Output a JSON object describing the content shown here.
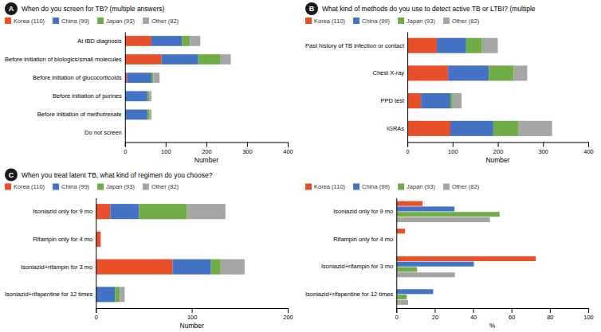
{
  "chart_data": [
    {
      "type": "bar",
      "orientation": "horizontal",
      "stacked": true,
      "grid": false,
      "legend": "top",
      "title": "When do you screen for TB? (multiple answers)",
      "annotations": [
        "A"
      ],
      "categories": [
        "Do not screen",
        "Before initiation of methotrexate",
        "Before initiation of purines",
        "Before initiation of glucocorticoids",
        "Before initiation of biologics/small molecules",
        "At IBD diagnosis"
      ],
      "series": [
        {
          "name": "Korea (110)",
          "color": "#E8502A",
          "values": [
            2,
            0,
            0,
            5,
            90,
            65
          ]
        },
        {
          "name": "China (99)",
          "color": "#4472C4",
          "values": [
            0,
            55,
            55,
            60,
            90,
            75
          ]
        },
        {
          "name": "Japan (93)",
          "color": "#70AD47",
          "values": [
            0,
            5,
            5,
            5,
            55,
            20
          ]
        },
        {
          "name": "Other (82)",
          "color": "#A5A5A5",
          "values": [
            0,
            5,
            5,
            15,
            25,
            25
          ]
        }
      ],
      "xlim": [
        0,
        400
      ],
      "xticks": [
        0,
        100,
        200,
        300,
        400
      ],
      "xlabel": "Number"
    },
    {
      "type": "bar",
      "orientation": "horizontal",
      "stacked": true,
      "grid": false,
      "legend": "top",
      "title": "What kind of methods do you use to detect active TB or LTBI? (multiple",
      "annotations": [
        "B"
      ],
      "categories": [
        "IGRAs",
        "PPD test",
        "Chest X-ray",
        "Past history of TB infection or contact"
      ],
      "series": [
        {
          "name": "Korea (110)",
          "color": "#E8502A",
          "values": [
            95,
            30,
            90,
            65
          ]
        },
        {
          "name": "China (99)",
          "color": "#4472C4",
          "values": [
            95,
            65,
            90,
            65
          ]
        },
        {
          "name": "Japan (93)",
          "color": "#70AD47",
          "values": [
            55,
            5,
            55,
            35
          ]
        },
        {
          "name": "Other (82)",
          "color": "#A5A5A5",
          "values": [
            75,
            20,
            30,
            35
          ]
        }
      ],
      "xlim": [
        0,
        400
      ],
      "xticks": [
        0,
        100,
        200,
        300,
        400
      ],
      "xlabel": "Number"
    },
    {
      "type": "bar",
      "orientation": "horizontal",
      "stacked": true,
      "grid": false,
      "legend": "top",
      "title": "When you treat latent TB, what kind of regimen do you choose?",
      "annotations": [
        "C"
      ],
      "categories": [
        "Isoniazid+rifapentine for 12 times",
        "Isoniazid+rifampin for 3 mo",
        "Rifampin only for 4 mo",
        "Isoniazid only for 9 mo"
      ],
      "series": [
        {
          "name": "Korea (110)",
          "color": "#E8502A",
          "values": [
            0,
            80,
            5,
            15
          ]
        },
        {
          "name": "China (99)",
          "color": "#4472C4",
          "values": [
            20,
            40,
            0,
            30
          ]
        },
        {
          "name": "Japan (93)",
          "color": "#70AD47",
          "values": [
            5,
            10,
            0,
            50
          ]
        },
        {
          "name": "Other (82)",
          "color": "#A5A5A5",
          "values": [
            5,
            25,
            0,
            40
          ]
        }
      ],
      "xlim": [
        0,
        200
      ],
      "xticks": [
        0,
        100,
        200
      ],
      "xlabel": "Number"
    },
    {
      "type": "bar",
      "orientation": "horizontal",
      "stacked": false,
      "grid": false,
      "legend": "top",
      "categories": [
        "Isoniazid+rifapentine for 12 times",
        "Isoniazid+rifampin for 3 mo",
        "Rifampin only for 4 mo",
        "Isoniazid only for 9 mo"
      ],
      "series": [
        {
          "name": "Korea (110)",
          "color": "#E8502A",
          "values": [
            0.0,
            72.7,
            4.5,
            13.6
          ]
        },
        {
          "name": "China (99)",
          "color": "#4472C4",
          "values": [
            19.2,
            40.4,
            0.0,
            30.3
          ]
        },
        {
          "name": "Japan (93)",
          "color": "#70AD47",
          "values": [
            5.4,
            10.8,
            0.0,
            53.8
          ]
        },
        {
          "name": "Other (82)",
          "color": "#A5A5A5",
          "values": [
            6.1,
            30.5,
            0.0,
            48.8
          ]
        }
      ],
      "xlim": [
        0,
        100
      ],
      "xticks": [
        0,
        20,
        40,
        60,
        80,
        100
      ],
      "xlabel": "%"
    }
  ]
}
